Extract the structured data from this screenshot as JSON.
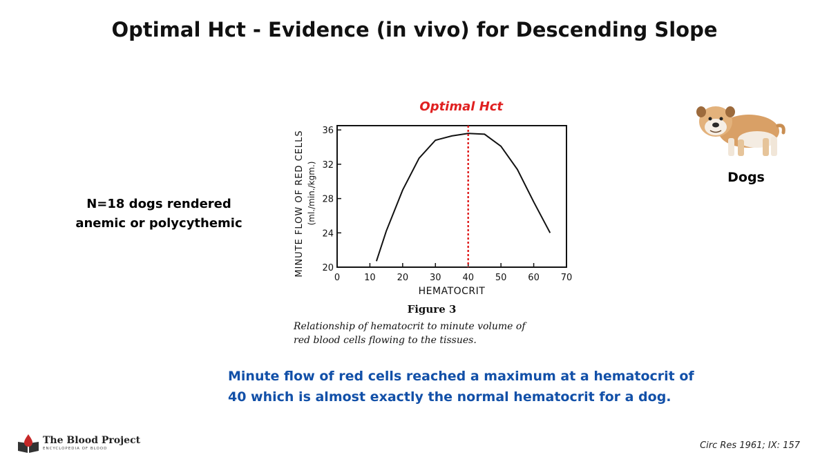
{
  "slide": {
    "title": "Optimal Hct - Evidence (in vivo) for Descending Slope",
    "left_note_line1": "N=18 dogs rendered",
    "left_note_line2": "anemic or polycythemic",
    "summary_line1": "Minute flow of red cells reached a maximum at a hematocrit of",
    "summary_line2": "40 which is almost exactly the normal hematocrit for a dog.",
    "dog_label": "Dogs",
    "citation": "Circ Res 1961; IX: 157",
    "logo_title": "The Blood Project",
    "logo_subtitle": "ENCYCLOPEDIA OF BLOOD",
    "colors": {
      "summary_text": "#1250a8",
      "optimal_line": "#e02020",
      "logo_drop": "#c62828"
    },
    "icons": {
      "dog": "bulldog-photo",
      "logo": "book-blood-drop-icon"
    }
  },
  "chart_data": {
    "type": "line",
    "xlabel": "HEMATOCRIT",
    "ylabel_line1": "MINUTE FLOW OF RED CELLS",
    "ylabel_line2": "(ml./min./kgm.)",
    "xlim": [
      0,
      70
    ],
    "ylim": [
      20,
      36.5
    ],
    "x_ticks": [
      0,
      10,
      20,
      30,
      40,
      50,
      60,
      70
    ],
    "y_ticks": [
      20,
      24,
      28,
      32,
      36
    ],
    "series": [
      {
        "x": [
          12,
          15,
          20,
          25,
          30,
          35,
          40,
          45,
          50,
          55,
          60,
          65
        ],
        "y": [
          20.7,
          24.2,
          29.0,
          32.7,
          34.8,
          35.3,
          35.6,
          35.5,
          34.1,
          31.4,
          27.6,
          24.0
        ]
      }
    ],
    "annotation": {
      "label": "Optimal Hct",
      "x": 40
    },
    "figure_label": "Figure 3",
    "caption_line1": "Relationship of hematocrit to minute volume of",
    "caption_line2": "red blood cells flowing to the tissues."
  }
}
